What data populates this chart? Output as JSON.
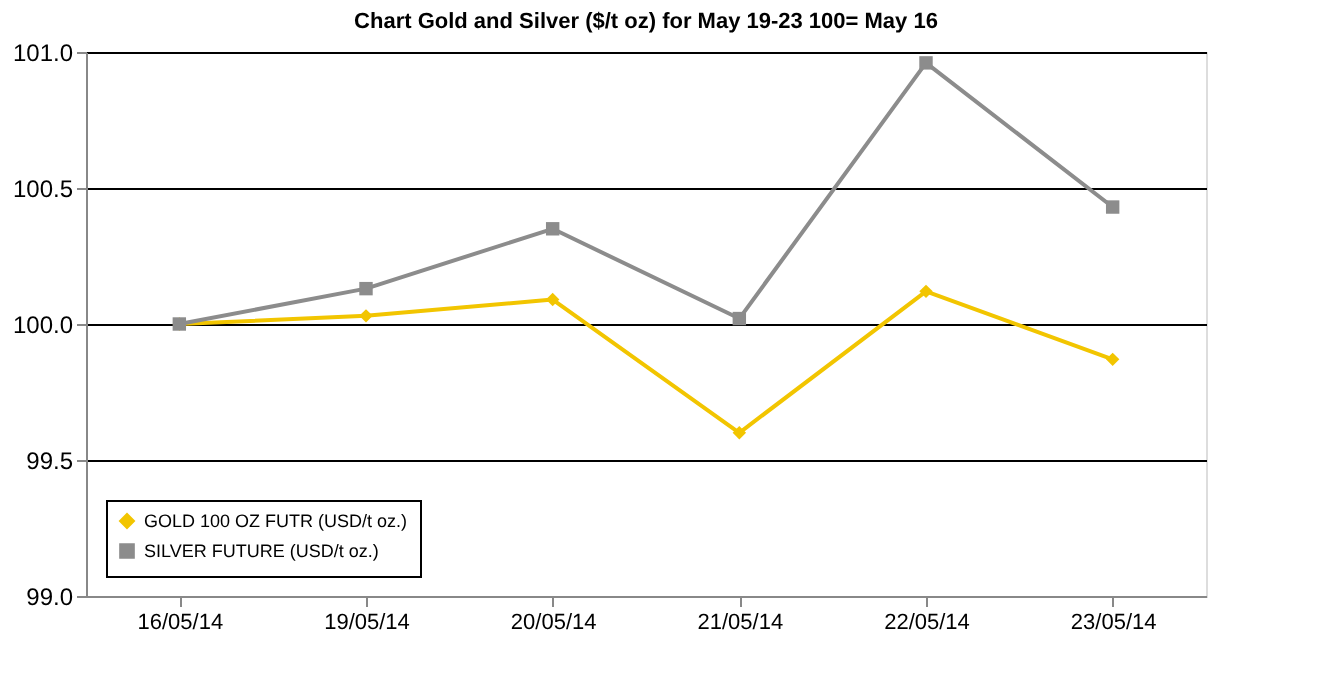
{
  "chart_data": {
    "type": "line",
    "title": "Chart  Gold and Silver ($/t oz) for May 19-23  100= May 16",
    "categories": [
      "16/05/14",
      "19/05/14",
      "20/05/14",
      "21/05/14",
      "22/05/14",
      "23/05/14"
    ],
    "series": [
      {
        "name": "GOLD 100 OZ FUTR (USD/t oz.)",
        "color": "#f2c500",
        "marker": "diamond",
        "values": [
          100.0,
          100.03,
          100.09,
          99.6,
          100.12,
          99.87
        ]
      },
      {
        "name": "SILVER FUTURE (USD/t oz.)",
        "color": "#8c8c8c",
        "marker": "square",
        "values": [
          100.0,
          100.13,
          100.35,
          100.02,
          100.96,
          100.43
        ]
      }
    ],
    "ylim": [
      99.0,
      101.0
    ],
    "yticks": [
      {
        "value": 99.0,
        "label": "99.0"
      },
      {
        "value": 99.5,
        "label": "99.5"
      },
      {
        "value": 100.0,
        "label": "100.0"
      },
      {
        "value": 100.5,
        "label": "100.5"
      },
      {
        "value": 101.0,
        "label": "101.0"
      }
    ],
    "grid": "y",
    "legend": "bottom left",
    "line_style": "solid"
  }
}
